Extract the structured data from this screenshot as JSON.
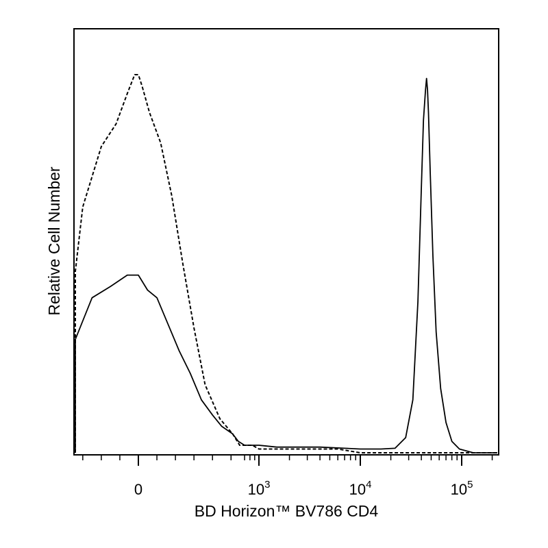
{
  "chart_data": {
    "type": "line",
    "title": "",
    "xlabel": "BD Horizon™ BV786 CD4",
    "ylabel": "Relative Cell Number",
    "x_scale": "biexponential",
    "x_ticks": [
      {
        "value": 0,
        "base": "0",
        "exp": ""
      },
      {
        "value": 1000,
        "base": "10",
        "exp": "3"
      },
      {
        "value": 10000,
        "base": "10",
        "exp": "4"
      },
      {
        "value": 100000,
        "base": "10",
        "exp": "5"
      }
    ],
    "y_ticks": [],
    "legend": "none",
    "grid": false,
    "series": [
      {
        "style": "dashed",
        "x": [
          -1300,
          -900,
          -600,
          -400,
          -300,
          -200,
          -120,
          -60,
          -20,
          0,
          20,
          60,
          120,
          180,
          240,
          300,
          360,
          440,
          520,
          620,
          730,
          850,
          1000,
          1500,
          3000,
          6000,
          10000,
          20000,
          40000,
          100000,
          250000
        ],
        "y": [
          0,
          0.03,
          0.17,
          0.48,
          0.65,
          0.81,
          0.87,
          0.95,
          1.0,
          1.0,
          0.97,
          0.9,
          0.82,
          0.68,
          0.5,
          0.33,
          0.18,
          0.09,
          0.05,
          0.02,
          0.02,
          0.02,
          0.01,
          0.01,
          0.01,
          0.01,
          0.0,
          0.0,
          0.0,
          0.0,
          0.0
        ]
      },
      {
        "style": "solid",
        "x": [
          -1300,
          -900,
          -600,
          -400,
          -250,
          -150,
          -60,
          0,
          50,
          100,
          160,
          220,
          280,
          340,
          400,
          450,
          520,
          600,
          700,
          850,
          1000,
          1500,
          2500,
          4000,
          7000,
          10000,
          16000,
          22000,
          28000,
          33000,
          37000,
          40000,
          42000,
          44000,
          45000,
          46000,
          47000,
          49000,
          52000,
          56000,
          62000,
          70000,
          80000,
          95000,
          130000,
          250000
        ],
        "y": [
          0,
          0.02,
          0.1,
          0.3,
          0.41,
          0.44,
          0.47,
          0.47,
          0.43,
          0.41,
          0.34,
          0.27,
          0.21,
          0.14,
          0.1,
          0.07,
          0.05,
          0.03,
          0.02,
          0.02,
          0.02,
          0.015,
          0.015,
          0.015,
          0.012,
          0.01,
          0.01,
          0.012,
          0.04,
          0.14,
          0.4,
          0.7,
          0.88,
          0.96,
          0.99,
          0.96,
          0.9,
          0.74,
          0.52,
          0.32,
          0.17,
          0.08,
          0.03,
          0.01,
          0.0,
          0.0
        ]
      }
    ]
  }
}
